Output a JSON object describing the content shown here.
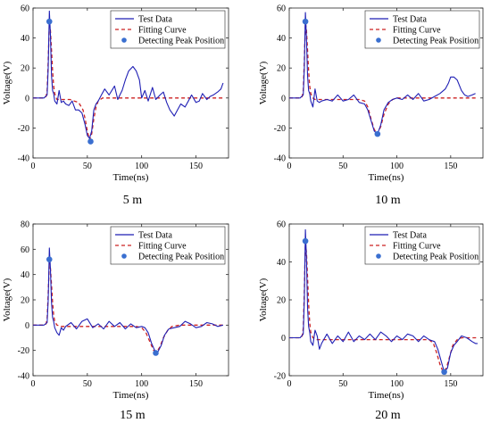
{
  "chart_data": [
    {
      "type": "line",
      "caption": "5 m",
      "xlabel": "Time(ns)",
      "ylabel": "Voltage(V)",
      "xlim": [
        0,
        180
      ],
      "ylim": [
        -40,
        60
      ],
      "xticks": [
        0,
        50,
        100,
        150
      ],
      "yticks": [
        -40,
        -20,
        0,
        20,
        40,
        60
      ],
      "legend_position": "top-right",
      "series": [
        {
          "name": "Test Data",
          "style": "solid",
          "color": "#1f1fb4",
          "x": [
            0,
            10,
            13,
            14,
            15,
            16,
            17,
            18,
            19,
            20,
            22,
            24,
            26,
            28,
            30,
            33,
            36,
            39,
            42,
            45,
            48,
            50,
            52,
            54,
            56,
            58,
            60,
            63,
            66,
            70,
            75,
            78,
            80,
            82,
            85,
            88,
            92,
            95,
            98,
            100,
            103,
            106,
            110,
            113,
            117,
            120,
            123,
            126,
            130,
            133,
            136,
            140,
            143,
            146,
            150,
            153,
            156,
            160,
            163,
            166,
            170,
            173,
            175
          ],
          "y": [
            0,
            0,
            2,
            20,
            58,
            42,
            15,
            5,
            3,
            -2,
            -4,
            5,
            -3,
            -2,
            -4,
            -5,
            -2,
            -8,
            -8,
            -10,
            -18,
            -25,
            -27,
            -22,
            -8,
            -4,
            -2,
            2,
            6,
            2,
            8,
            -1,
            2,
            5,
            12,
            18,
            21,
            18,
            12,
            0,
            5,
            -2,
            7,
            -1,
            2,
            4,
            -3,
            -8,
            -12,
            -8,
            -4,
            -6,
            -2,
            2,
            -3,
            -2,
            3,
            -1,
            1,
            2,
            4,
            6,
            10
          ]
        },
        {
          "name": "Fitting Curve",
          "style": "dashed",
          "color": "#cc2222",
          "x": [
            0,
            10,
            12,
            13,
            14,
            15,
            16,
            17,
            18,
            19,
            20,
            21,
            22,
            23,
            24,
            26,
            28,
            30,
            34,
            38,
            42,
            46,
            48,
            50,
            52,
            54,
            56,
            58,
            60,
            64,
            70,
            80,
            100,
            140,
            175
          ],
          "y": [
            0,
            0,
            1,
            5,
            25,
            50,
            45,
            32,
            18,
            8,
            3,
            1,
            -1,
            -1,
            -1,
            -1,
            -1,
            -1,
            -1,
            -2,
            -3,
            -8,
            -14,
            -22,
            -28,
            -24,
            -14,
            -6,
            -2,
            0,
            0,
            0,
            0,
            0,
            0
          ]
        }
      ],
      "peaks": [
        {
          "x": 15,
          "y": 51
        },
        {
          "x": 53,
          "y": -29
        }
      ]
    },
    {
      "type": "line",
      "caption": "10 m",
      "xlabel": "Time(ns)",
      "ylabel": "Voltage(V)",
      "xlim": [
        0,
        180
      ],
      "ylim": [
        -40,
        60
      ],
      "xticks": [
        0,
        50,
        100,
        150
      ],
      "yticks": [
        -40,
        -20,
        0,
        20,
        40,
        60
      ],
      "legend_position": "top-right",
      "series": [
        {
          "name": "Test Data",
          "style": "solid",
          "color": "#1f1fb4",
          "x": [
            0,
            10,
            13,
            14,
            15,
            16,
            17,
            18,
            19,
            20,
            22,
            24,
            26,
            28,
            30,
            35,
            40,
            45,
            50,
            55,
            60,
            65,
            70,
            73,
            76,
            79,
            82,
            85,
            88,
            92,
            96,
            100,
            105,
            110,
            115,
            120,
            125,
            130,
            135,
            140,
            145,
            148,
            150,
            153,
            156,
            160,
            163,
            166,
            170,
            173
          ],
          "y": [
            0,
            0,
            2,
            20,
            57,
            40,
            15,
            5,
            3,
            -2,
            -6,
            6,
            -2,
            -3,
            -2,
            -1,
            -2,
            2,
            -2,
            -1,
            2,
            -3,
            -4,
            -8,
            -15,
            -22,
            -24,
            -18,
            -8,
            -3,
            -1,
            0,
            -1,
            2,
            -1,
            3,
            -2,
            -1,
            1,
            3,
            6,
            10,
            14,
            14,
            12,
            5,
            2,
            1,
            2,
            3
          ]
        },
        {
          "name": "Fitting Curve",
          "style": "dashed",
          "color": "#cc2222",
          "x": [
            0,
            10,
            12,
            13,
            14,
            15,
            16,
            17,
            18,
            19,
            20,
            22,
            24,
            28,
            35,
            50,
            65,
            70,
            73,
            76,
            79,
            82,
            85,
            88,
            92,
            96,
            100,
            110,
            140,
            175
          ],
          "y": [
            0,
            0,
            1,
            5,
            25,
            50,
            45,
            32,
            18,
            8,
            3,
            0,
            -1,
            -1,
            -1,
            -1,
            -1,
            -2,
            -6,
            -14,
            -21,
            -24,
            -19,
            -11,
            -4,
            -1,
            0,
            0,
            0,
            0
          ]
        }
      ],
      "peaks": [
        {
          "x": 15,
          "y": 51
        },
        {
          "x": 82,
          "y": -24
        }
      ]
    },
    {
      "type": "line",
      "caption": "15 m",
      "xlabel": "Time(ns)",
      "ylabel": "Voltage(V)",
      "xlim": [
        0,
        180
      ],
      "ylim": [
        -40,
        80
      ],
      "xticks": [
        0,
        50,
        100,
        150
      ],
      "yticks": [
        -40,
        -20,
        0,
        20,
        40,
        60,
        80
      ],
      "legend_position": "top-right",
      "series": [
        {
          "name": "Test Data",
          "style": "solid",
          "color": "#1f1fb4",
          "x": [
            0,
            10,
            13,
            14,
            15,
            16,
            17,
            18,
            19,
            20,
            22,
            24,
            26,
            28,
            30,
            35,
            40,
            45,
            50,
            55,
            60,
            65,
            70,
            75,
            80,
            85,
            90,
            95,
            100,
            103,
            106,
            109,
            112,
            115,
            118,
            121,
            125,
            130,
            135,
            140,
            145,
            150,
            155,
            160,
            165,
            170,
            175
          ],
          "y": [
            0,
            0,
            2,
            20,
            61,
            44,
            18,
            6,
            3,
            -2,
            -6,
            -8,
            -2,
            -4,
            -1,
            2,
            -3,
            3,
            5,
            -2,
            1,
            -3,
            3,
            -1,
            2,
            -3,
            1,
            -2,
            -1,
            -2,
            -6,
            -14,
            -20,
            -21,
            -16,
            -8,
            -3,
            -2,
            -1,
            3,
            1,
            -2,
            -1,
            2,
            1,
            -1,
            0
          ]
        },
        {
          "name": "Fitting Curve",
          "style": "dashed",
          "color": "#cc2222",
          "x": [
            0,
            10,
            12,
            13,
            14,
            15,
            16,
            17,
            18,
            19,
            20,
            22,
            26,
            30,
            40,
            60,
            80,
            95,
            100,
            104,
            108,
            111,
            114,
            117,
            120,
            124,
            128,
            135,
            145,
            175
          ],
          "y": [
            0,
            0,
            1,
            5,
            25,
            50,
            45,
            32,
            18,
            8,
            3,
            0,
            -1,
            -1,
            -1,
            -1,
            -1,
            -1,
            -2,
            -6,
            -14,
            -20,
            -21,
            -17,
            -10,
            -4,
            -1,
            0,
            0,
            0
          ]
        }
      ],
      "peaks": [
        {
          "x": 15,
          "y": 52
        },
        {
          "x": 113,
          "y": -22
        }
      ]
    },
    {
      "type": "line",
      "caption": "20 m",
      "xlabel": "Time(ns)",
      "ylabel": "Voltage(V)",
      "xlim": [
        0,
        180
      ],
      "ylim": [
        -20,
        60
      ],
      "xticks": [
        0,
        50,
        100,
        150
      ],
      "yticks": [
        -20,
        0,
        20,
        40,
        60
      ],
      "legend_position": "top-right",
      "series": [
        {
          "name": "Test Data",
          "style": "solid",
          "color": "#1f1fb4",
          "x": [
            0,
            10,
            13,
            14,
            15,
            16,
            17,
            18,
            19,
            20,
            22,
            24,
            26,
            28,
            30,
            35,
            40,
            45,
            50,
            55,
            60,
            65,
            70,
            75,
            80,
            85,
            90,
            95,
            100,
            105,
            110,
            115,
            120,
            125,
            130,
            135,
            138,
            141,
            144,
            147,
            150,
            153,
            156,
            160,
            165,
            170,
            173,
            175
          ],
          "y": [
            0,
            0,
            2,
            20,
            57,
            42,
            16,
            6,
            3,
            -2,
            -4,
            4,
            1,
            -6,
            -3,
            2,
            -3,
            1,
            -2,
            3,
            -2,
            1,
            -1,
            2,
            -1,
            3,
            1,
            -2,
            1,
            -1,
            2,
            1,
            -2,
            1,
            -1,
            -2,
            -6,
            -12,
            -18,
            -16,
            -8,
            -4,
            -2,
            1,
            0,
            -2,
            -3,
            -3
          ]
        },
        {
          "name": "Fitting Curve",
          "style": "dashed",
          "color": "#cc2222",
          "x": [
            0,
            10,
            12,
            13,
            14,
            15,
            16,
            17,
            18,
            19,
            20,
            22,
            26,
            30,
            40,
            60,
            80,
            100,
            120,
            130,
            134,
            137,
            140,
            143,
            146,
            149,
            152,
            156,
            160,
            175
          ],
          "y": [
            0,
            0,
            1,
            5,
            25,
            50,
            45,
            32,
            18,
            8,
            3,
            0,
            -1,
            -1,
            -1,
            -1,
            -1,
            -1,
            -1,
            -1,
            -3,
            -8,
            -14,
            -18,
            -16,
            -10,
            -4,
            -1,
            0,
            0
          ]
        }
      ],
      "peaks": [
        {
          "x": 15,
          "y": 51
        },
        {
          "x": 144,
          "y": -18
        }
      ]
    }
  ]
}
